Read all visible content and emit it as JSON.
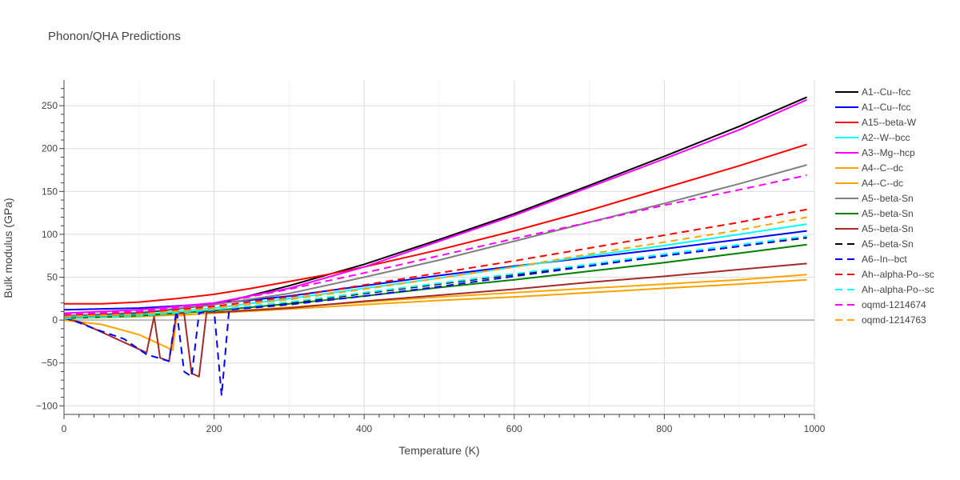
{
  "chart_data": {
    "type": "line",
    "title": "Phonon/QHA Predictions",
    "xlabel": "Temperature (K)",
    "ylabel": "Bulk modulus (GPa)",
    "xlim": [
      0,
      1000
    ],
    "ylim": [
      -110,
      280
    ],
    "xticks": [
      0,
      200,
      400,
      600,
      800,
      1000
    ],
    "yticks": [
      -100,
      -50,
      0,
      50,
      100,
      150,
      200,
      250
    ],
    "grid": true,
    "legend_position": "right",
    "series": [
      {
        "name": "A1--Cu--fcc",
        "color": "#000000",
        "dash": "solid",
        "x": [
          0,
          100,
          200,
          300,
          400,
          500,
          600,
          700,
          800,
          900,
          990
        ],
        "y": [
          5,
          8,
          18,
          40,
          65,
          94,
          124,
          157,
          191,
          226,
          260
        ]
      },
      {
        "name": "A1--Cu--fcc",
        "color": "#0000ff",
        "dash": "solid",
        "x": [
          0,
          100,
          200,
          300,
          400,
          500,
          600,
          700,
          800,
          900,
          990
        ],
        "y": [
          12,
          14,
          19,
          28,
          40,
          52,
          63,
          73,
          83,
          94,
          104
        ]
      },
      {
        "name": "A15--beta-W",
        "color": "#ff0000",
        "dash": "solid",
        "x": [
          0,
          50,
          100,
          150,
          200,
          250,
          300,
          350,
          400,
          500,
          600,
          700,
          800,
          900,
          990
        ],
        "y": [
          19,
          19,
          21,
          25,
          30,
          37,
          45,
          53,
          62,
          82,
          104,
          128,
          154,
          180,
          205
        ]
      },
      {
        "name": "A2--W--bcc",
        "color": "#00ffff",
        "dash": "solid",
        "x": [
          0,
          100,
          200,
          300,
          400,
          500,
          600,
          700,
          800,
          900,
          990
        ],
        "y": [
          3,
          6,
          14,
          25,
          37,
          49,
          62,
          75,
          87,
          100,
          112
        ]
      },
      {
        "name": "A3--Mg--hcp",
        "color": "#ff00ff",
        "dash": "solid",
        "x": [
          0,
          100,
          200,
          300,
          400,
          500,
          600,
          700,
          800,
          900,
          990
        ],
        "y": [
          8,
          12,
          20,
          37,
          62,
          92,
          122,
          155,
          188,
          222,
          257
        ]
      },
      {
        "name": "A4--C--dc",
        "color": "#ffa500",
        "dash": "solid",
        "x": [
          0,
          50,
          100,
          145,
          150,
          200,
          300,
          400,
          500,
          600,
          700,
          800,
          900,
          990
        ],
        "y": [
          0,
          -5,
          -17,
          -35,
          5,
          9,
          15,
          21,
          27,
          32,
          37,
          42,
          47,
          53
        ]
      },
      {
        "name": "A4--C--dc",
        "color": "#f5a300",
        "dash": "solid",
        "x": [
          0,
          100,
          200,
          300,
          400,
          500,
          600,
          700,
          800,
          900,
          990
        ],
        "y": [
          2,
          4,
          8,
          13,
          18,
          23,
          27,
          32,
          37,
          42,
          47
        ]
      },
      {
        "name": "A5--beta-Sn",
        "color": "#808080",
        "dash": "solid",
        "x": [
          0,
          100,
          200,
          300,
          400,
          500,
          600,
          700,
          800,
          900,
          990
        ],
        "y": [
          5,
          9,
          18,
          31,
          50,
          70,
          92,
          114,
          136,
          159,
          181
        ]
      },
      {
        "name": "A5--beta-Sn",
        "color": "#008000",
        "dash": "solid",
        "x": [
          0,
          100,
          200,
          300,
          400,
          500,
          600,
          700,
          800,
          900,
          990
        ],
        "y": [
          2,
          5,
          11,
          19,
          28,
          38,
          47,
          57,
          67,
          78,
          88
        ]
      },
      {
        "name": "A5--beta-Sn",
        "color": "#a52a2a",
        "dash": "solid",
        "x": [
          0,
          20,
          60,
          110,
          120,
          128,
          140,
          150,
          160,
          170,
          180,
          190,
          200,
          300,
          400,
          500,
          600,
          700,
          800,
          900,
          990
        ],
        "y": [
          2,
          -2,
          -18,
          -38,
          4,
          -44,
          -48,
          8,
          8,
          -62,
          -66,
          9,
          9,
          14,
          22,
          29,
          36,
          44,
          51,
          59,
          66
        ]
      },
      {
        "name": "A5--beta-Sn",
        "color": "#000000",
        "dash": "dash",
        "x": [
          0,
          100,
          200,
          300,
          400,
          500,
          600,
          700,
          800,
          900,
          990
        ],
        "y": [
          3,
          5,
          12,
          20,
          31,
          42,
          53,
          64,
          75,
          86,
          96
        ]
      },
      {
        "name": "A6--In--bct",
        "color": "#0000ff",
        "dash": "dash",
        "x": [
          0,
          20,
          40,
          80,
          110,
          140,
          150,
          160,
          170,
          180,
          190,
          200,
          210,
          220,
          300,
          400,
          500,
          600,
          700,
          800,
          900,
          990
        ],
        "y": [
          3,
          -3,
          -10,
          -22,
          -40,
          -48,
          12,
          -60,
          -66,
          8,
          10,
          12,
          -88,
          12,
          18,
          28,
          39,
          51,
          63,
          75,
          86,
          97
        ]
      },
      {
        "name": "Ah--alpha-Po--sc",
        "color": "#ff0000",
        "dash": "dash",
        "x": [
          0,
          100,
          200,
          300,
          400,
          500,
          600,
          700,
          800,
          900,
          990
        ],
        "y": [
          5,
          8,
          16,
          27,
          41,
          55,
          69,
          84,
          99,
          114,
          129
        ]
      },
      {
        "name": "Ah--alpha-Po--sc",
        "color": "#00ffff",
        "dash": "dash",
        "x": [
          0,
          100,
          200,
          300,
          400,
          500,
          600,
          700,
          800,
          900,
          990
        ],
        "y": [
          2,
          5,
          12,
          21,
          32,
          43,
          54,
          65,
          77,
          88,
          98
        ]
      },
      {
        "name": "oqmd-1214674",
        "color": "#ff00ff",
        "dash": "dash",
        "x": [
          0,
          100,
          200,
          300,
          400,
          500,
          600,
          700,
          800,
          900,
          990
        ],
        "y": [
          7,
          10,
          19,
          36,
          55,
          75,
          95,
          114,
          134,
          152,
          169
        ]
      },
      {
        "name": "oqmd-1214763",
        "color": "#ffa500",
        "dash": "dash",
        "x": [
          0,
          100,
          200,
          300,
          400,
          500,
          600,
          700,
          800,
          900,
          990
        ],
        "y": [
          4,
          7,
          14,
          24,
          36,
          49,
          62,
          77,
          91,
          105,
          120
        ]
      }
    ]
  }
}
